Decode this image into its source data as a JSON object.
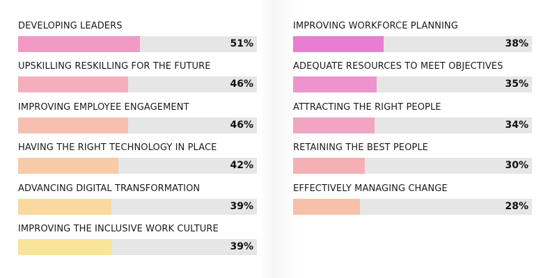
{
  "chart_data": {
    "type": "bar",
    "orientation": "horizontal",
    "xlim": [
      0,
      100
    ],
    "groups": [
      {
        "categories": [
          "DEVELOPING LEADERS",
          "UPSKILLING RESKILLING FOR THE FUTURE",
          "IMPROVING EMPLOYEE ENGAGEMENT",
          "HAVING THE RIGHT TECHNOLOGY IN PLACE",
          "ADVANCING DIGITAL TRANSFORMATION",
          "IMPROVING THE INCLUSIVE WORK CULTURE"
        ],
        "values": [
          51,
          46,
          46,
          42,
          39,
          39
        ],
        "value_labels": [
          "51%",
          "46%",
          "46%",
          "42%",
          "39%",
          "39%"
        ],
        "colors": [
          "#f29ac6",
          "#f5aebc",
          "#f6bfb0",
          "#f7caa8",
          "#f9d99f",
          "#fae39a"
        ]
      },
      {
        "categories": [
          "IMPROVING WORKFORCE PLANNING",
          "ADEQUATE RESOURCES TO MEET OBJECTIVES",
          "ATTRACTING THE RIGHT PEOPLE",
          "RETAINING THE BEST PEOPLE",
          "EFFECTIVELY MANAGING CHANGE"
        ],
        "values": [
          38,
          35,
          34,
          30,
          28
        ],
        "value_labels": [
          "38%",
          "35%",
          "34%",
          "30%",
          "28%"
        ],
        "colors": [
          "#e97dd1",
          "#ee93cc",
          "#f2a4c2",
          "#f5b0b6",
          "#f7c0a8"
        ]
      }
    ],
    "track_color": "#e6e6e6",
    "grid": false
  }
}
